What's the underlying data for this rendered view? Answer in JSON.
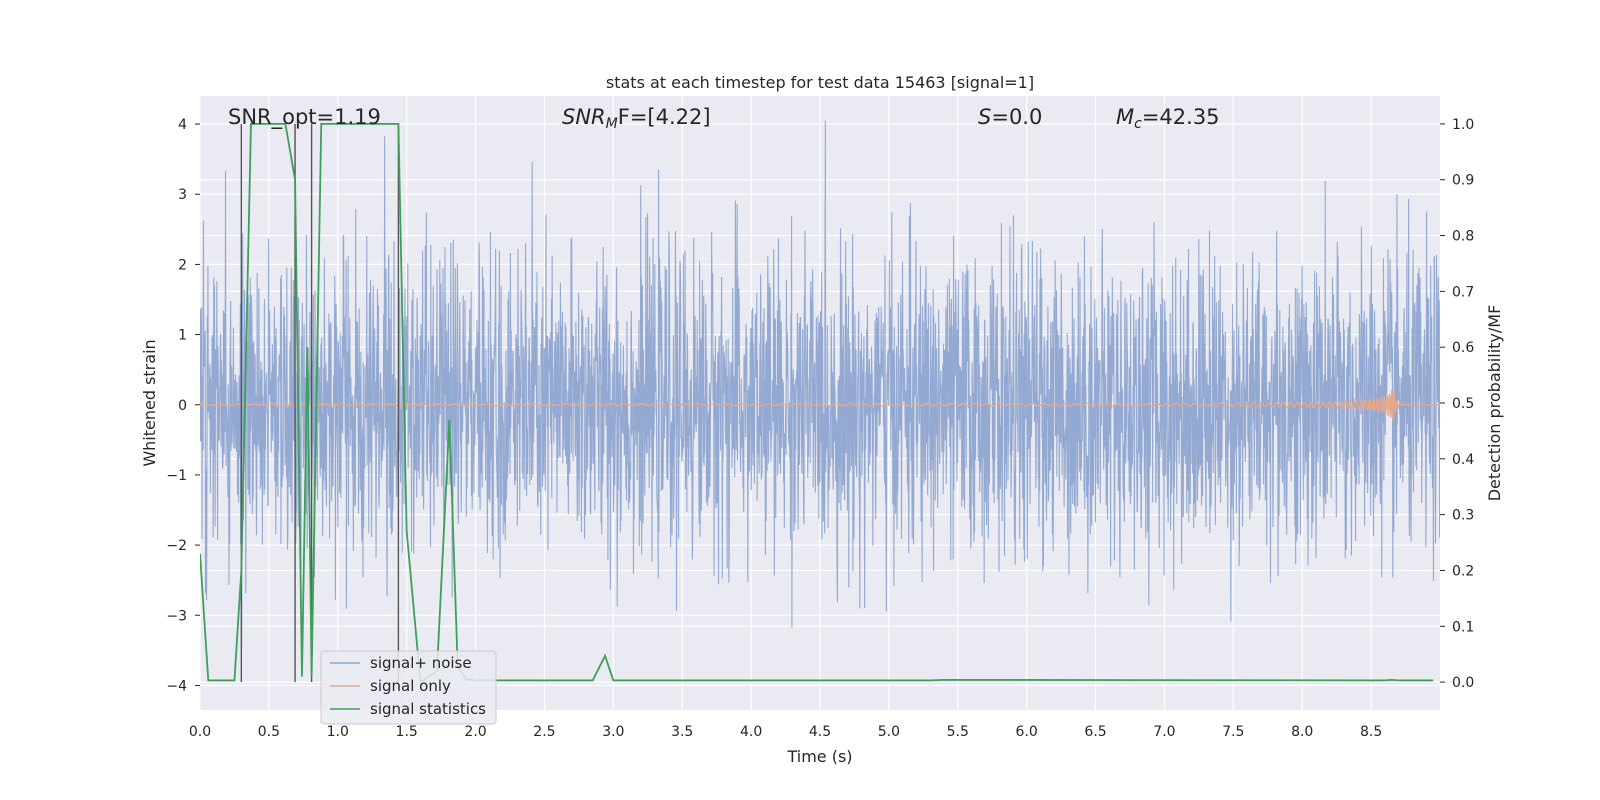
{
  "chart_data": {
    "type": "line",
    "title": "stats at each timestep for test data 15463 [signal=1]",
    "xlabel": "Time (s)",
    "ylabel_left": "Whitened strain",
    "ylabel_right": "Detection probability/MF",
    "xlim": [
      0.0,
      9.0
    ],
    "ylim_left": [
      -4.35,
      4.4
    ],
    "ylim_right": [
      -0.05,
      1.05
    ],
    "xticks": [
      "0.0",
      "0.5",
      "1.0",
      "1.5",
      "2.0",
      "2.5",
      "3.0",
      "3.5",
      "4.0",
      "4.5",
      "5.0",
      "5.5",
      "6.0",
      "6.5",
      "7.0",
      "7.5",
      "8.0",
      "8.5"
    ],
    "xtick_values": [
      0.0,
      0.5,
      1.0,
      1.5,
      2.0,
      2.5,
      3.0,
      3.5,
      4.0,
      4.5,
      5.0,
      5.5,
      6.0,
      6.5,
      7.0,
      7.5,
      8.0,
      8.5
    ],
    "yticks_left": [
      "−4",
      "−3",
      "−2",
      "−1",
      "0",
      "1",
      "2",
      "3",
      "4"
    ],
    "ytick_values_left": [
      -4,
      -3,
      -2,
      -1,
      0,
      1,
      2,
      3,
      4
    ],
    "yticks_right": [
      "0.0",
      "0.1",
      "0.2",
      "0.3",
      "0.4",
      "0.5",
      "0.6",
      "0.7",
      "0.8",
      "0.9",
      "1.0"
    ],
    "ytick_values_right": [
      0.0,
      0.1,
      0.2,
      0.3,
      0.4,
      0.5,
      0.6,
      0.7,
      0.8,
      0.9,
      1.0
    ],
    "grid": true,
    "legend_position": "lower-left",
    "annotations": {
      "snr_opt": "SNR_opt=1.19",
      "snr_mf_base": "SNR",
      "snr_mf_sub": "M",
      "snr_mf_rest": "F=[4.22]",
      "s_var": "S",
      "s_rest": "=0.0",
      "mc_base": "M",
      "mc_sub": "c",
      "mc_rest": "=42.35"
    },
    "vertical_markers_x": [
      0.3,
      0.69,
      0.81,
      1.44
    ],
    "series": [
      {
        "name": "signal+ noise",
        "color": "#8fa5d0",
        "axis": "left",
        "noise_std": 1.0,
        "x_range": [
          0.0,
          9.0
        ]
      },
      {
        "name": "signal only",
        "color": "#e5a98a",
        "axis": "left",
        "chirp_end_x": 8.66,
        "chirp_peak_amplitude": 0.3
      },
      {
        "name": "signal statistics",
        "color": "#3f9e5a",
        "axis": "right",
        "x": [
          0.0,
          0.06,
          0.25,
          0.3,
          0.37,
          0.43,
          0.62,
          0.69,
          0.74,
          0.78,
          0.81,
          0.88,
          1.44,
          1.5,
          1.6,
          1.72,
          1.81,
          1.87,
          1.93,
          2.0,
          2.85,
          2.94,
          3.0,
          5.3,
          5.4,
          8.6,
          8.65,
          8.7,
          8.95
        ],
        "y": [
          0.23,
          0.003,
          0.003,
          0.2,
          1.0,
          1.0,
          1.0,
          0.9,
          0.01,
          0.6,
          0.01,
          1.0,
          1.0,
          0.27,
          0.0,
          0.02,
          0.47,
          0.03,
          0.005,
          0.003,
          0.003,
          0.047,
          0.003,
          0.003,
          0.004,
          0.003,
          0.004,
          0.003,
          0.003
        ]
      }
    ]
  }
}
